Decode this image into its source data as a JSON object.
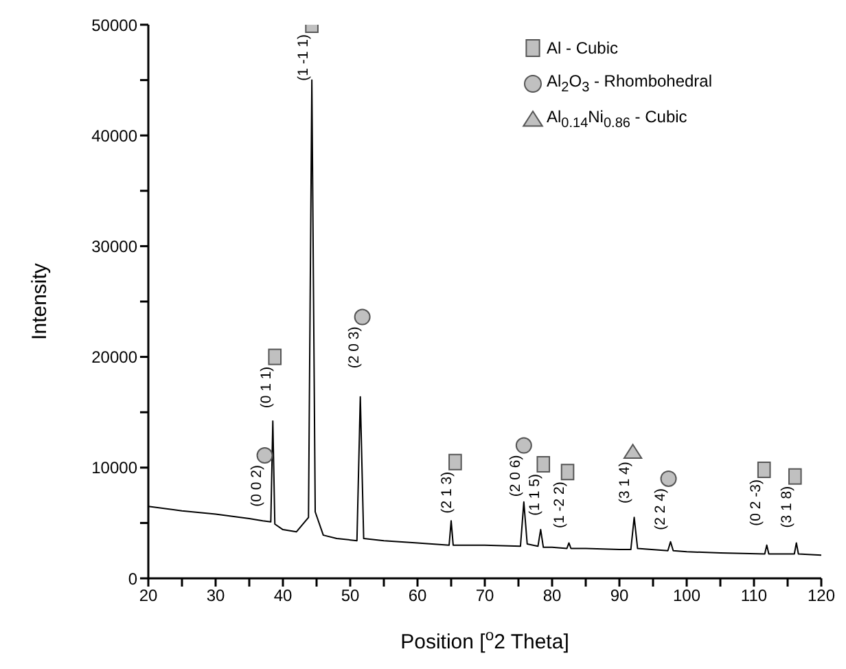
{
  "chart_data": {
    "type": "line",
    "xlabel": "Position [$^{o}$2 Theta]",
    "ylabel": "Intensity",
    "xlim": [
      20,
      120
    ],
    "xticks": [
      20,
      {
        "value": 25,
        "label": null
      },
      30,
      {
        "value": 35,
        "label": null
      },
      40,
      {
        "value": 45,
        "label": null
      },
      50,
      {
        "value": 55,
        "label": null
      },
      60,
      {
        "value": 65,
        "label": null
      },
      70,
      {
        "value": 75,
        "label": null
      },
      80,
      {
        "value": 85,
        "label": null
      },
      90,
      {
        "value": 95,
        "label": null
      },
      100,
      {
        "value": 105,
        "label": null
      },
      110,
      {
        "value": 115,
        "label": null
      },
      120
    ],
    "ylim": [
      0,
      50000
    ],
    "yticks": [
      0,
      {
        "value": 5000,
        "label": null
      },
      10000,
      {
        "value": 15000,
        "label": null
      },
      20000,
      {
        "value": 25000,
        "label": null
      },
      30000,
      {
        "value": 35000,
        "label": null
      },
      40000,
      {
        "value": 45000,
        "label": null
      },
      50000
    ],
    "grid": false,
    "legend": "top right",
    "series": [
      {
        "color": "#000000",
        "marker": "none",
        "x": [
          20,
          25,
          30,
          35,
          37,
          38.2,
          38.5,
          38.8,
          40,
          42,
          43.8,
          44.3,
          44.8,
          46,
          48,
          51,
          51.5,
          52,
          55,
          60,
          64.7,
          65.0,
          65.3,
          70,
          75.3,
          75.8,
          76.3,
          77.9,
          78.3,
          78.7,
          80,
          82.2,
          82.5,
          82.8,
          85,
          90,
          91.7,
          92.2,
          92.7,
          97.2,
          97.6,
          98.0,
          100,
          105,
          111.6,
          111.9,
          112.2,
          115,
          116.0,
          116.3,
          116.6,
          120
        ],
        "values": [
          6500,
          6100,
          5800,
          5400,
          5200,
          5100,
          14200,
          4900,
          4400,
          4200,
          5500,
          45000,
          6000,
          3900,
          3600,
          3400,
          16400,
          3600,
          3400,
          3200,
          3000,
          5200,
          3000,
          3000,
          2900,
          6900,
          3100,
          2900,
          4400,
          2800,
          2800,
          2700,
          3200,
          2700,
          2700,
          2600,
          2600,
          5500,
          2700,
          2500,
          3300,
          2500,
          2400,
          2300,
          2200,
          3000,
          2200,
          2200,
          2200,
          3200,
          2200,
          2100
        ]
      },
      {
        "type": "scatter",
        "name": "Al - Cubic",
        "color": "#c0c0c0",
        "marker": "square",
        "x": [
          38.8,
          44.3,
          65.6,
          78.7,
          82.3,
          111.5,
          116.1
        ],
        "values": [
          20000,
          50000,
          10500,
          10300,
          9600,
          9800,
          9200
        ]
      },
      {
        "type": "scatter",
        "name": "Al$_{2}$O$_{3}$ - Rhombohedral",
        "color": "#c0c0c0",
        "marker": "circle",
        "x": [
          37.3,
          51.8,
          75.8,
          97.3
        ],
        "values": [
          11100,
          23600,
          12000,
          9000
        ]
      },
      {
        "type": "scatter",
        "name": "Al$_{0.14}$Ni$_{0.86}$ - Cubic",
        "color": "#c0c0c0",
        "marker": "triangle",
        "x": [
          92.0
        ],
        "values": [
          11400
        ]
      }
    ],
    "annotations": [
      {
        "text": "(0 0 2)",
        "x": 37.3,
        "y": 11100
      },
      {
        "text": "(0 1 1)",
        "x": 38.8,
        "y": 20000
      },
      {
        "text": "(1 -1 1)",
        "x": 44.3,
        "y": 50000
      },
      {
        "text": "(2 0 3)",
        "x": 51.8,
        "y": 23600
      },
      {
        "text": "(2 1 3)",
        "x": 65.6,
        "y": 10500
      },
      {
        "text": "(2 0 6)",
        "x": 75.8,
        "y": 12000
      },
      {
        "text": "(1 1 5)",
        "x": 78.7,
        "y": 10300
      },
      {
        "text": "(1 -2 2)",
        "x": 82.3,
        "y": 9600
      },
      {
        "text": "(3 1 4)",
        "x": 92.0,
        "y": 11400
      },
      {
        "text": "(2 2 4)",
        "x": 97.3,
        "y": 9000
      },
      {
        "text": "(0 2 -3)",
        "x": 111.5,
        "y": 9800
      },
      {
        "text": "(3 1 8)",
        "x": 116.1,
        "y": 9200
      }
    ]
  }
}
